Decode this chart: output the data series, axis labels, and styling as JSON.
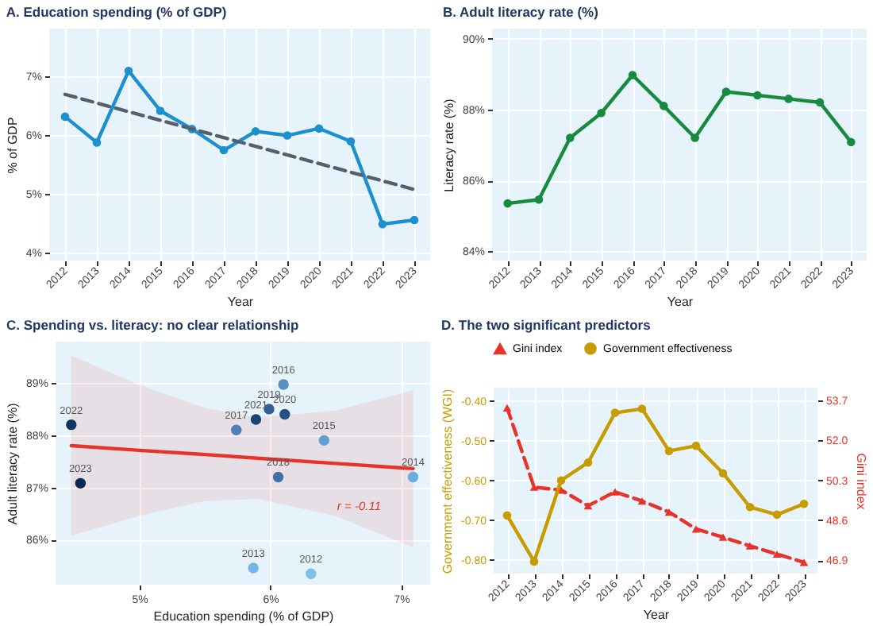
{
  "chart_data": [
    {
      "type": "line",
      "title": "A.  Education spending (% of GDP)",
      "xlabel": "Year",
      "ylabel": "% of GDP",
      "grid": true,
      "marker": "circle",
      "x": [
        2012,
        2013,
        2014,
        2015,
        2016,
        2017,
        2018,
        2019,
        2020,
        2021,
        2022,
        2023
      ],
      "xlim": [
        2011.5,
        2023.5
      ],
      "xticks": [
        2012,
        2013,
        2014,
        2015,
        2016,
        2017,
        2018,
        2019,
        2020,
        2021,
        2022,
        2023
      ],
      "ylim": [
        3.86,
        7.81
      ],
      "yticks": [
        {
          "value": 4,
          "label": "4%"
        },
        {
          "value": 5,
          "label": "5%"
        },
        {
          "value": 6,
          "label": "6%"
        },
        {
          "value": 7,
          "label": "7%"
        }
      ],
      "series": [
        {
          "color": "#1b8fd0",
          "values": [
            6.31,
            5.87,
            7.09,
            6.41,
            6.1,
            5.74,
            6.06,
            5.99,
            6.11,
            5.89,
            4.48,
            4.55
          ]
        },
        {
          "type": "line",
          "x": [
            2012,
            2023
          ],
          "values": [
            6.69,
            5.07
          ],
          "color": "#55606c",
          "line_style": "dashed",
          "marker": "none"
        }
      ]
    },
    {
      "type": "line",
      "title": "B.  Adult literacy rate (%)",
      "xlabel": "Year",
      "ylabel": "Literacy rate (%)",
      "grid": true,
      "marker": "circle",
      "x": [
        2012,
        2013,
        2014,
        2015,
        2016,
        2017,
        2018,
        2019,
        2020,
        2021,
        2022,
        2023
      ],
      "xlim": [
        2011.5,
        2023.5
      ],
      "xticks": [
        2012,
        2013,
        2014,
        2015,
        2016,
        2017,
        2018,
        2019,
        2020,
        2021,
        2022,
        2023
      ],
      "ylim": [
        83.74,
        90.28
      ],
      "yticks": [
        {
          "value": 84,
          "label": "84%"
        },
        {
          "value": 86,
          "label": "86%"
        },
        {
          "value": 88,
          "label": "88%"
        },
        {
          "value": 90,
          "label": "90%"
        }
      ],
      "series": [
        {
          "color": "#178a3e",
          "values": [
            85.35,
            85.46,
            87.2,
            87.9,
            88.97,
            88.1,
            87.2,
            88.5,
            88.4,
            88.3,
            88.2,
            87.08
          ]
        }
      ]
    },
    {
      "type": "scatter",
      "title": "C.  Spending vs. literacy: no clear relationship",
      "xlabel": "Education spending (% of GDP)",
      "ylabel": "Adult literacy rate (%)",
      "grid": true,
      "x": [
        6.31,
        5.87,
        7.09,
        6.41,
        6.1,
        5.74,
        6.06,
        5.99,
        6.11,
        5.89,
        4.48,
        4.55
      ],
      "xlim": [
        4.36,
        7.22
      ],
      "xticks": [
        {
          "value": 5,
          "label": "5%"
        },
        {
          "value": 6,
          "label": "6%"
        },
        {
          "value": 7,
          "label": "7%"
        }
      ],
      "ylim": [
        85.14,
        89.79
      ],
      "yticks": [
        {
          "value": 86,
          "label": "86%"
        },
        {
          "value": 87,
          "label": "87%"
        },
        {
          "value": 88,
          "label": "88%"
        },
        {
          "value": 89,
          "label": "89%"
        }
      ],
      "series": [
        {
          "values": [
            85.35,
            85.46,
            87.2,
            87.9,
            88.97,
            88.1,
            87.2,
            88.5,
            88.4,
            88.3,
            88.2,
            87.08
          ],
          "colors": [
            "#7cc0ea",
            "#74b6e3",
            "#6aaddd",
            "#5f9fd2",
            "#5590c4",
            "#4b81b6",
            "#3f71a6",
            "#325f95",
            "#265084",
            "#1c4273",
            "#123463",
            "#0a2853"
          ]
        },
        {
          "type": "line",
          "x": [
            4.48,
            5.0,
            5.5,
            5.9,
            6.5,
            7.09
          ],
          "values": [
            87.8,
            87.71,
            87.63,
            87.56,
            87.46,
            87.36
          ],
          "lower": [
            86.08,
            86.46,
            86.74,
            86.78,
            86.45,
            85.86
          ],
          "upper": [
            89.52,
            88.96,
            88.52,
            88.34,
            88.47,
            88.86
          ],
          "color": "#e8332a",
          "marker": "none"
        }
      ],
      "annotations": [
        {
          "text": "2012",
          "x": 6.31,
          "y": 85.35
        },
        {
          "text": "2013",
          "x": 5.87,
          "y": 85.46
        },
        {
          "text": "2014",
          "x": 7.09,
          "y": 87.2
        },
        {
          "text": "2015",
          "x": 6.41,
          "y": 87.9
        },
        {
          "text": "2016",
          "x": 6.1,
          "y": 88.97
        },
        {
          "text": "2017",
          "x": 5.74,
          "y": 88.1
        },
        {
          "text": "2018",
          "x": 6.06,
          "y": 87.2
        },
        {
          "text": "2019",
          "x": 5.99,
          "y": 88.5
        },
        {
          "text": "2020",
          "x": 6.11,
          "y": 88.4
        },
        {
          "text": "2021",
          "x": 5.89,
          "y": 88.3
        },
        {
          "text": "2022",
          "x": 4.48,
          "y": 88.2
        },
        {
          "text": "2023",
          "x": 4.55,
          "y": 87.08
        },
        "r = -0.11"
      ]
    },
    {
      "type": "line",
      "title": "D.  The two significant predictors",
      "xlabel": "Year",
      "ylabel": "Government effectiveness (WGI)",
      "y2label": "Gini index",
      "grid": true,
      "legend": "top",
      "x": [
        2012,
        2013,
        2014,
        2015,
        2016,
        2017,
        2018,
        2019,
        2020,
        2021,
        2022,
        2023
      ],
      "xlim": [
        2011.5,
        2023.5
      ],
      "xticks": [
        2012,
        2013,
        2014,
        2015,
        2016,
        2017,
        2018,
        2019,
        2020,
        2021,
        2022,
        2023
      ],
      "ylim": [
        -0.834,
        -0.367
      ],
      "yticks": [
        {
          "value": -0.8,
          "label": "-0.80"
        },
        {
          "value": -0.7,
          "label": "-0.70"
        },
        {
          "value": -0.6,
          "label": "-0.60"
        },
        {
          "value": -0.5,
          "label": "-0.50"
        },
        {
          "value": -0.4,
          "label": "-0.40"
        }
      ],
      "y2lim": [
        46.33,
        54.25
      ],
      "y2ticks": [
        46.9,
        48.6,
        50.3,
        {
          "value": 52.0,
          "label": "52.0"
        },
        53.7
      ],
      "series": [
        {
          "name": "Gini index",
          "axis": "y2",
          "color": "#e8332a",
          "line_style": "dashed",
          "marker": "triangle",
          "values": [
            53.39,
            50.01,
            49.89,
            49.22,
            49.81,
            49.42,
            48.95,
            48.23,
            47.88,
            47.51,
            47.16,
            46.81
          ]
        },
        {
          "name": "Government effectiveness",
          "color": "#c79c00",
          "marker": "circle",
          "values": [
            -0.688,
            -0.804,
            -0.6,
            -0.555,
            -0.43,
            -0.42,
            -0.526,
            -0.513,
            -0.582,
            -0.667,
            -0.686,
            -0.659
          ]
        }
      ]
    }
  ]
}
